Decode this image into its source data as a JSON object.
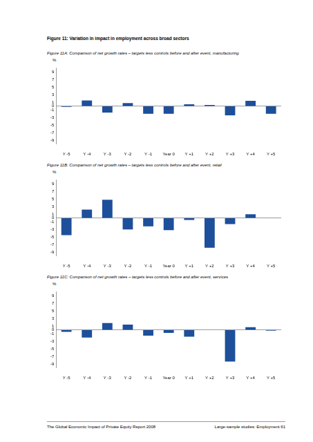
{
  "header": {
    "title": "Figure 11: Variation in impact in employment across broad sectors"
  },
  "footer": {
    "left": "The Global Economic Impact of Private Equity Report 2008",
    "right": "Large-sample studies: Employment",
    "page": "61"
  },
  "chart_data": [
    {
      "type": "bar",
      "title": "Figure 11A: Comparison of net growth rates – targets less controls before and after event, manufacturing",
      "ylabel": "%",
      "categories": [
        "Y -5",
        "Y -4",
        "Y -3",
        "Y -2",
        "Y -1",
        "Year 0",
        "Y +1",
        "Y +2",
        "Y +3",
        "Y +4",
        "Y +5"
      ],
      "values": [
        -0.2,
        1.5,
        -1.7,
        0.8,
        -2.0,
        -2.0,
        0.5,
        0.3,
        -2.4,
        1.4,
        -2.0
      ],
      "color": "#1d4f9a",
      "ylim": [
        -10,
        10
      ],
      "yticks": [
        -9,
        -7,
        -5,
        -3,
        -1,
        0,
        1,
        3,
        5,
        7,
        9
      ],
      "grid": false
    },
    {
      "type": "bar",
      "title": "Figure 11B: Comparison of net growth rates – targets less controls before and after event, retail",
      "ylabel": "%",
      "categories": [
        "Y -5",
        "Y -4",
        "Y -3",
        "Y -2",
        "Y -1",
        "Year 0",
        "Y +1",
        "Y +2",
        "Y +3",
        "Y +4",
        "Y +5"
      ],
      "values": [
        -4.5,
        2.2,
        4.8,
        -3.0,
        -2.2,
        -3.2,
        -0.5,
        -7.8,
        -1.6,
        1.0,
        0
      ],
      "color": "#1d4f9a",
      "ylim": [
        -10,
        10
      ],
      "yticks": [
        -9,
        -7,
        -5,
        -3,
        -1,
        0,
        1,
        3,
        5,
        7,
        9
      ],
      "grid": false
    },
    {
      "type": "bar",
      "title": "Figure 11C: Comparison of net growth rates – targets less controls before and after event, services",
      "ylabel": "%",
      "categories": [
        "Y -5",
        "Y -4",
        "Y -3",
        "Y -2",
        "Y -1",
        "Year 0",
        "Y +1",
        "Y +2",
        "Y +3",
        "Y +4",
        "Y +5"
      ],
      "values": [
        -0.5,
        -2.0,
        1.8,
        1.4,
        -1.5,
        -0.8,
        -1.8,
        0,
        -8.3,
        0.7,
        -0.2
      ],
      "color": "#1d4f9a",
      "ylim": [
        -10,
        10
      ],
      "yticks": [
        -9,
        -7,
        -5,
        -3,
        -1,
        0,
        1,
        3,
        5,
        7,
        9
      ],
      "grid": false
    }
  ]
}
